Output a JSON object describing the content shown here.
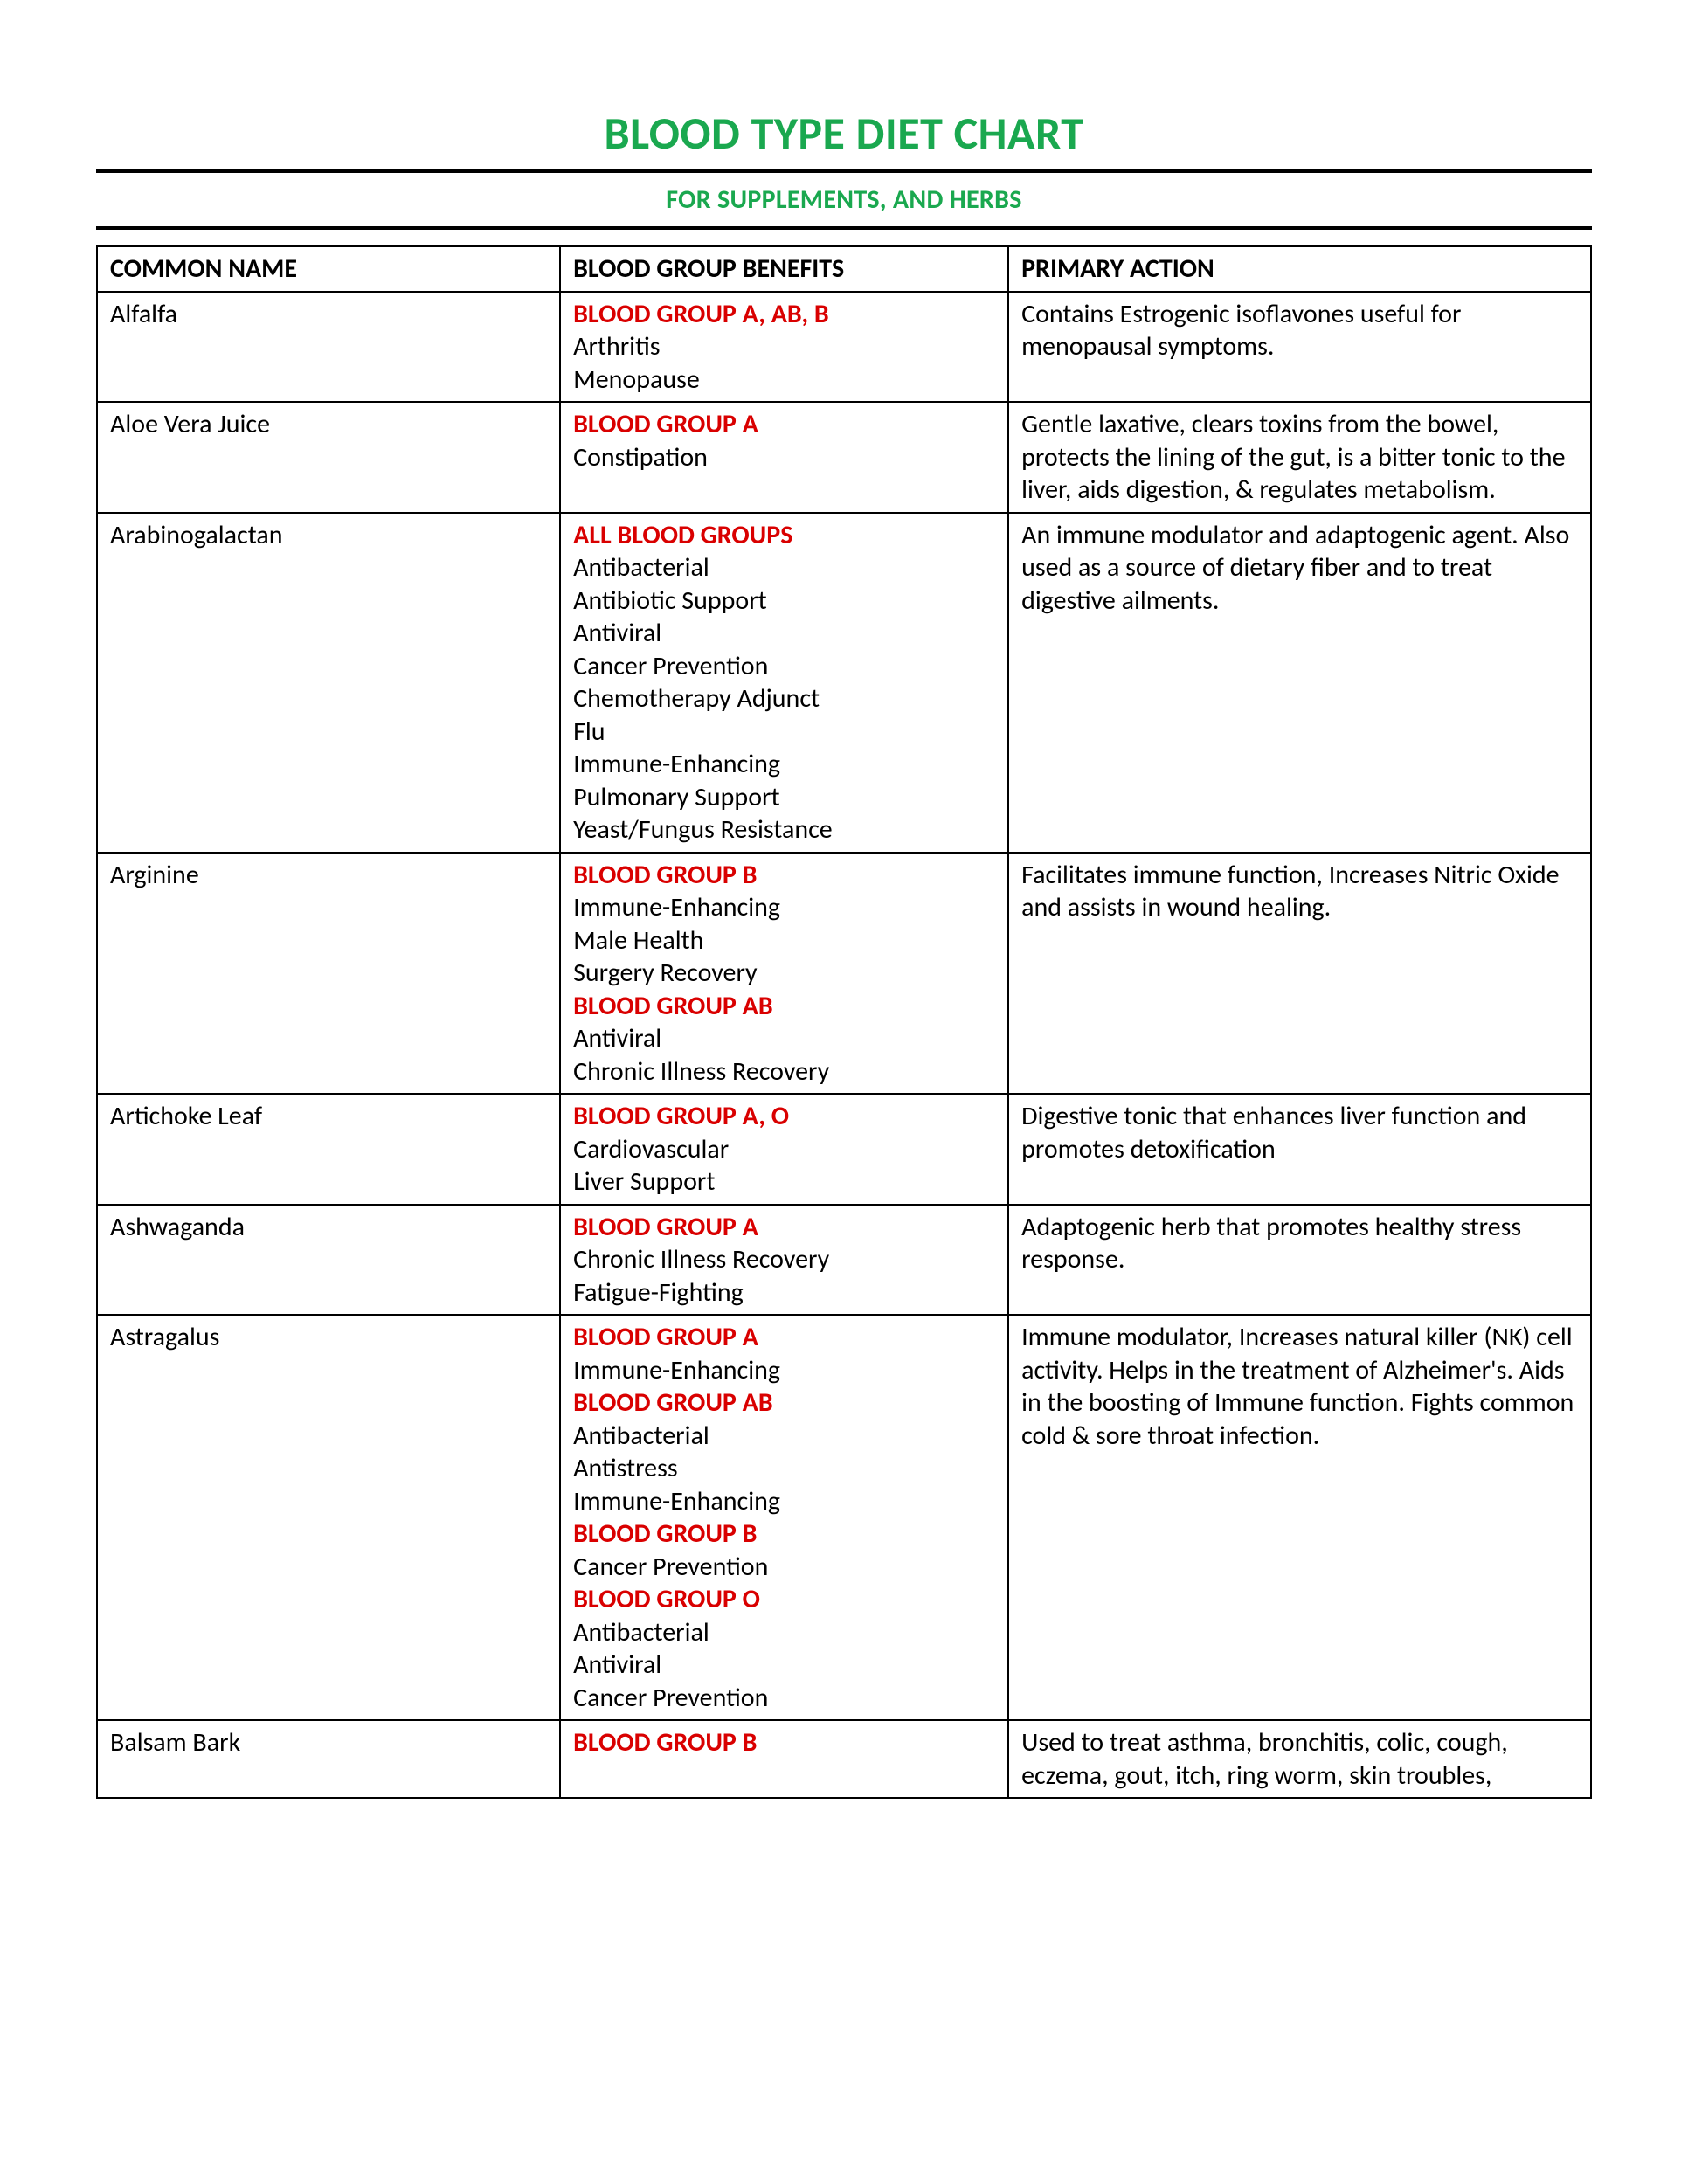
{
  "title": "BLOOD TYPE DIET CHART",
  "subtitle": "FOR SUPPLEMENTS, AND HERBS",
  "colors": {
    "title_color": "#1aa84f",
    "subtitle_color": "#1aa84f",
    "rule_color": "#000000",
    "blood_group_color": "#d90000",
    "text_color": "#000000",
    "background": "#ffffff",
    "table_border": "#000000"
  },
  "typography": {
    "title_fontsize_pt": 26,
    "subtitle_fontsize_pt": 15,
    "header_fontsize_pt": 15,
    "body_fontsize_pt": 15,
    "action_fontsize_pt": 14,
    "font_family": "Calibri"
  },
  "table": {
    "headers": [
      "COMMON NAME",
      "BLOOD GROUP BENEFITS",
      "PRIMARY ACTION"
    ],
    "column_widths_pct": [
      31,
      30,
      39
    ],
    "rows": [
      {
        "name": "Alfalfa",
        "benefits": [
          {
            "group": "BLOOD GROUP A, AB, B",
            "items": [
              "Arthritis",
              "Menopause"
            ]
          }
        ],
        "action": "Contains Estrogenic isoflavones useful for menopausal symptoms."
      },
      {
        "name": "Aloe Vera Juice",
        "benefits": [
          {
            "group": "BLOOD GROUP A",
            "items": [
              "Constipation"
            ]
          }
        ],
        "action": "Gentle laxative, clears toxins from the bowel, protects the lining of the gut, is a bitter tonic to the liver, aids digestion, & regulates metabolism."
      },
      {
        "name": "Arabinogalactan",
        "benefits": [
          {
            "group": "ALL BLOOD GROUPS",
            "items": [
              "Antibacterial",
              "Antibiotic Support",
              "Antiviral",
              "Cancer Prevention",
              "Chemotherapy Adjunct",
              "Flu",
              "Immune-Enhancing",
              "Pulmonary Support",
              "Yeast/Fungus Resistance"
            ]
          }
        ],
        "action": "An immune modulator and adaptogenic agent. Also used as a source of dietary fiber and to treat digestive ailments."
      },
      {
        "name": "Arginine",
        "benefits": [
          {
            "group": "BLOOD GROUP B",
            "items": [
              "Immune-Enhancing",
              "Male Health",
              "Surgery Recovery"
            ]
          },
          {
            "group": "BLOOD GROUP AB",
            "items": [
              "Antiviral",
              "Chronic Illness Recovery"
            ]
          }
        ],
        "action": "Facilitates immune function, Increases Nitric Oxide and assists in wound healing."
      },
      {
        "name": "Artichoke Leaf",
        "benefits": [
          {
            "group": "BLOOD GROUP A, O",
            "items": [
              "Cardiovascular",
              "Liver Support"
            ]
          }
        ],
        "action": "Digestive tonic that enhances liver function and promotes detoxification"
      },
      {
        "name": "Ashwaganda",
        "benefits": [
          {
            "group": "BLOOD GROUP A",
            "items": [
              "Chronic Illness Recovery",
              "Fatigue-Fighting"
            ]
          }
        ],
        "action": "Adaptogenic herb that promotes healthy stress response."
      },
      {
        "name": "Astragalus",
        "benefits": [
          {
            "group": "BLOOD GROUP A",
            "items": [
              "Immune-Enhancing"
            ]
          },
          {
            "group": "BLOOD GROUP AB",
            "items": [
              "Antibacterial",
              "Antistress",
              "Immune-Enhancing"
            ]
          },
          {
            "group": "BLOOD GROUP B",
            "items": [
              "Cancer Prevention"
            ]
          },
          {
            "group": "BLOOD GROUP O",
            "items": [
              "Antibacterial",
              "Antiviral",
              "Cancer Prevention"
            ]
          }
        ],
        "action": "Immune modulator, Increases natural killer (NK) cell activity. Helps in the treatment of Alzheimer's. Aids in the boosting of Immune function. Fights common cold & sore throat infection."
      },
      {
        "name": "Balsam Bark",
        "benefits": [
          {
            "group": "BLOOD GROUP B",
            "items": []
          }
        ],
        "action": "Used to treat asthma, bronchitis, colic, cough, eczema, gout, itch, ring worm, skin troubles,"
      }
    ]
  }
}
